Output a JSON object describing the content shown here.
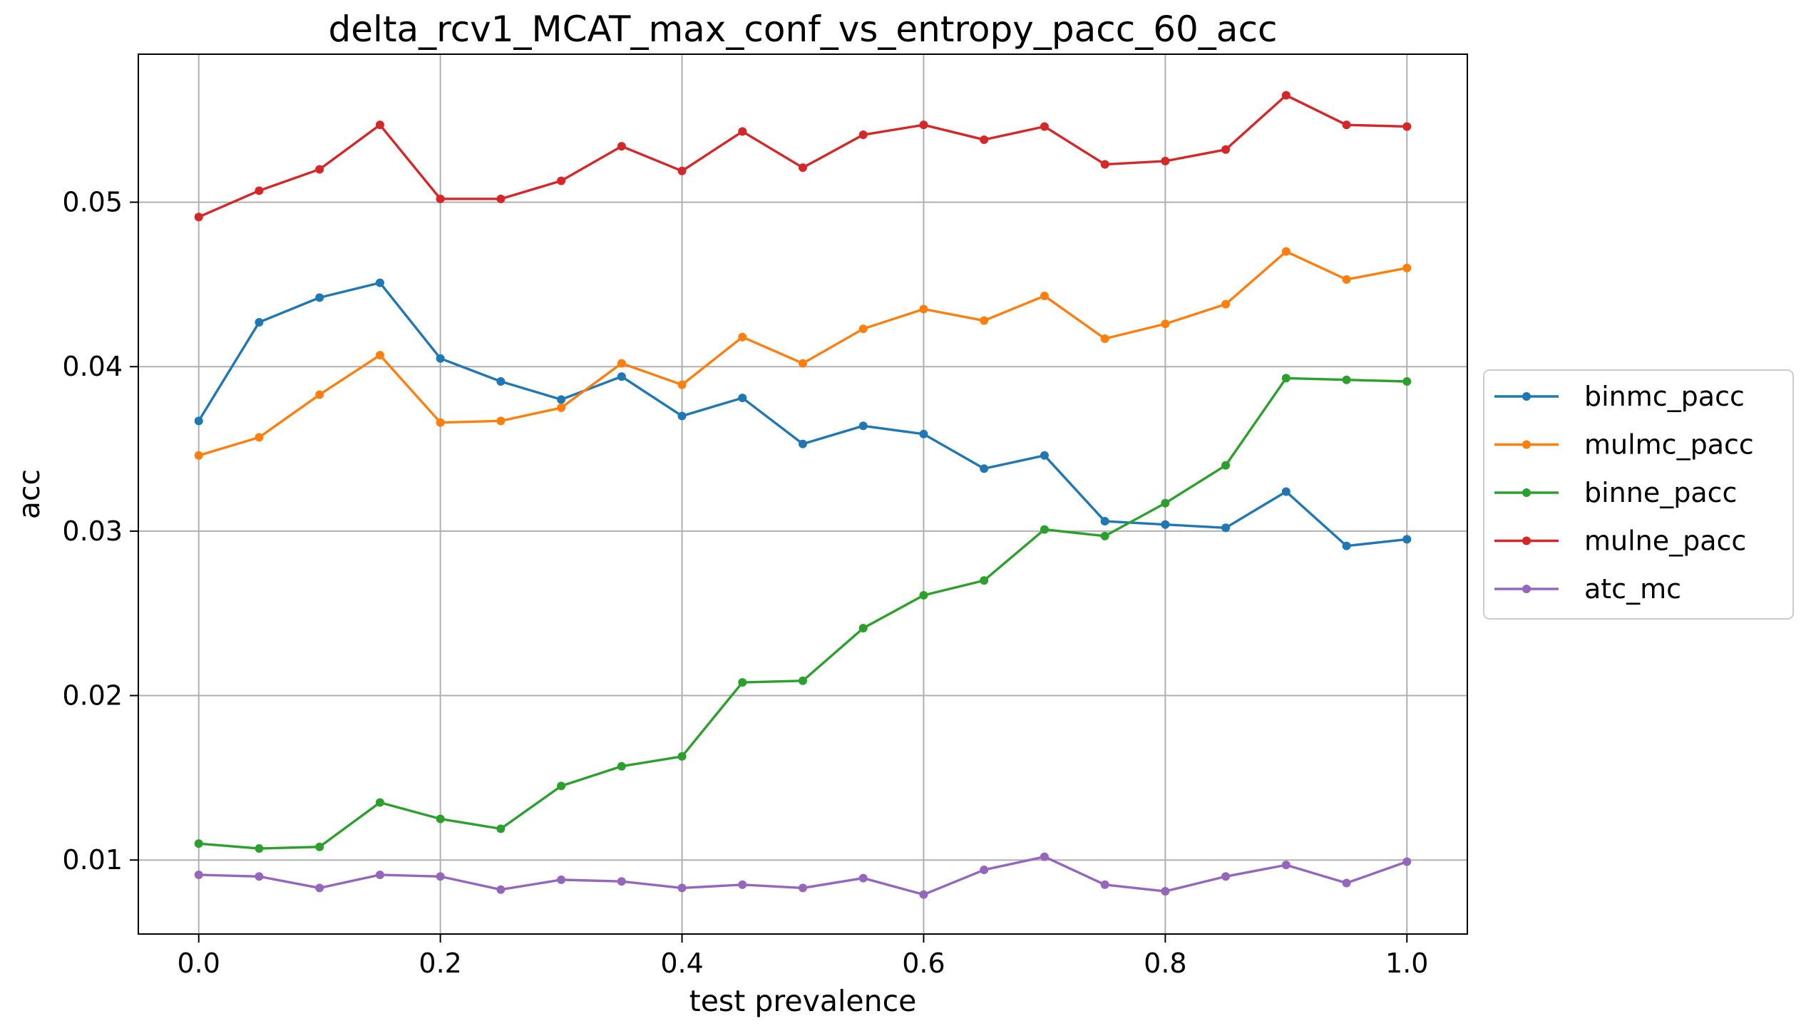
{
  "chart_data": {
    "type": "line",
    "title": "delta_rcv1_MCAT_max_conf_vs_entropy_pacc_60_acc",
    "xlabel": "test prevalence",
    "ylabel": "acc",
    "xlim": [
      -0.05,
      1.05
    ],
    "ylim": [
      0.0055,
      0.059
    ],
    "x_ticks": [
      0.0,
      0.2,
      0.4,
      0.6,
      0.8,
      1.0
    ],
    "x_tick_labels": [
      "0.0",
      "0.2",
      "0.4",
      "0.6",
      "0.8",
      "1.0"
    ],
    "y_ticks": [
      0.01,
      0.02,
      0.03,
      0.04,
      0.05
    ],
    "y_tick_labels": [
      "0.01",
      "0.02",
      "0.03",
      "0.04",
      "0.05"
    ],
    "grid": true,
    "legend_position": "center right, outside plot",
    "x": [
      0.0,
      0.05,
      0.1,
      0.15,
      0.2,
      0.25,
      0.3,
      0.35,
      0.4,
      0.45,
      0.5,
      0.55,
      0.6,
      0.65,
      0.7,
      0.75,
      0.8,
      0.85,
      0.9,
      0.95,
      1.0
    ],
    "series": [
      {
        "name": "binmc_pacc",
        "color": "#1f77b4",
        "values": [
          0.0367,
          0.0427,
          0.0442,
          0.0451,
          0.0405,
          0.0391,
          0.038,
          0.0394,
          0.037,
          0.0381,
          0.0353,
          0.0364,
          0.0359,
          0.0338,
          0.0346,
          0.0306,
          0.0304,
          0.0302,
          0.0324,
          0.0291,
          0.0295
        ]
      },
      {
        "name": "mulmc_pacc",
        "color": "#ff7f0e",
        "values": [
          0.0346,
          0.0357,
          0.0383,
          0.0407,
          0.0366,
          0.0367,
          0.0375,
          0.0402,
          0.0389,
          0.0418,
          0.0402,
          0.0423,
          0.0435,
          0.0428,
          0.0443,
          0.0417,
          0.0426,
          0.0438,
          0.047,
          0.0453,
          0.046
        ]
      },
      {
        "name": "binne_pacc",
        "color": "#2ca02c",
        "values": [
          0.011,
          0.0107,
          0.0108,
          0.0135,
          0.0125,
          0.0119,
          0.0145,
          0.0157,
          0.0163,
          0.0208,
          0.0209,
          0.0241,
          0.0261,
          0.027,
          0.0301,
          0.0297,
          0.0317,
          0.034,
          0.0393,
          0.0392,
          0.0391
        ]
      },
      {
        "name": "mulne_pacc",
        "color": "#d62728",
        "values": [
          0.0491,
          0.0507,
          0.052,
          0.0547,
          0.0502,
          0.0502,
          0.0513,
          0.0534,
          0.0519,
          0.0543,
          0.0521,
          0.0541,
          0.0547,
          0.0538,
          0.0546,
          0.0523,
          0.0525,
          0.0532,
          0.0565,
          0.0547,
          0.0546
        ]
      },
      {
        "name": "atc_mc",
        "color": "#9467bd",
        "values": [
          0.0091,
          0.009,
          0.0083,
          0.0091,
          0.009,
          0.0082,
          0.0088,
          0.0087,
          0.0083,
          0.0085,
          0.0083,
          0.0089,
          0.0079,
          0.0094,
          0.0102,
          0.0085,
          0.0081,
          0.009,
          0.0097,
          0.0086,
          0.0099
        ]
      }
    ]
  }
}
